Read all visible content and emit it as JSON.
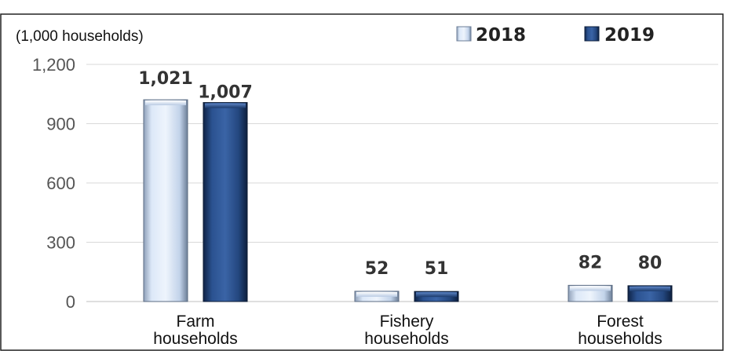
{
  "chart_data": {
    "type": "bar",
    "unit_label": "(1,000 households)",
    "categories": [
      [
        "Farm",
        "households"
      ],
      [
        "Fishery",
        "households"
      ],
      [
        "Forest",
        "households"
      ]
    ],
    "series": [
      {
        "name": "2018",
        "values": [
          1021,
          52,
          82
        ],
        "value_labels": [
          "1,021",
          "52",
          "82"
        ],
        "color": "#c9dcf2"
      },
      {
        "name": "2019",
        "values": [
          1007,
          51,
          80
        ],
        "value_labels": [
          "1,007",
          "51",
          "80"
        ],
        "color": "#1f4275"
      }
    ],
    "yticks": [
      0,
      300,
      600,
      900,
      1200
    ],
    "ytick_labels": [
      "0",
      "300",
      "600",
      "900",
      "1,200"
    ],
    "ylim": [
      0,
      1200
    ],
    "grid": true,
    "legend_position": "top-right"
  }
}
